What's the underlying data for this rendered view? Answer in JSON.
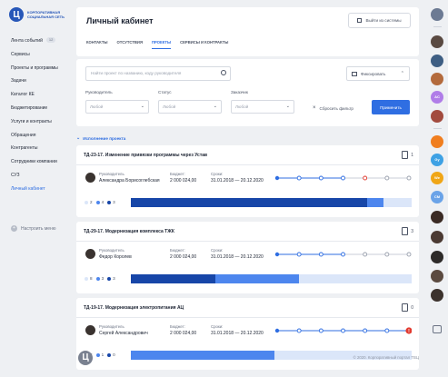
{
  "brand": {
    "name_line1": "Корпоративная",
    "name_line2": "социальная сеть",
    "logo_letter": "Ц"
  },
  "nav": [
    {
      "label": "Лента событий",
      "badge": "12"
    },
    {
      "label": "Сервисы"
    },
    {
      "label": "Проекты и программы"
    },
    {
      "label": "Задачи"
    },
    {
      "label": "Каталог КЕ"
    },
    {
      "label": "Бюджетирование"
    },
    {
      "label": "Услуги и контракты"
    },
    {
      "label": "Обращения"
    },
    {
      "label": "Контрагенты"
    },
    {
      "label": "Сотрудники компании"
    },
    {
      "label": "СУЗ"
    },
    {
      "label": "Личный кабинет",
      "active": true
    }
  ],
  "setup_menu": "Настроить меню",
  "header": {
    "title": "Личный кабинет",
    "logout": "Выйти из системы",
    "tabs": [
      "Контакты",
      "Отсутствия",
      "Проекты",
      "Сервисы и контракты"
    ],
    "active_tab": 2
  },
  "filters": {
    "search_placeholder": "Найти проект по названию, коду руководителя",
    "fix_label": "Фиксировать",
    "manager_label": "Руководитель",
    "status_label": "Статус",
    "customer_label": "Заказчик",
    "any": "Любой",
    "reset": "Сбросить фильтр",
    "apply": "Применить"
  },
  "section": "Исполнение проекта",
  "labels": {
    "manager": "Руководитель",
    "budget": "Бюджет:",
    "dates": "Сроки:"
  },
  "projects": [
    {
      "title": "ТД-23-17. Изменение привязки программы через Устав",
      "docs": "1",
      "manager": "Александра Борисоглебская",
      "budget": "2 000 024,00",
      "dates": "31.01.2018 — 20.12.2020",
      "counts": [
        "2",
        "4",
        "3"
      ],
      "progress": [
        0.84,
        0.06
      ],
      "timeline": [
        "filled",
        "open",
        "open",
        "open",
        "red",
        "grey",
        "grey"
      ]
    },
    {
      "title": "ТД-29-17. Модернизация комплекса ТЖК",
      "docs": "3",
      "manager": "Федор Королев",
      "budget": "2 000 024,00",
      "dates": "31.01.2018 — 20.12.2020",
      "counts": [
        "8",
        "3",
        "3"
      ],
      "progress": [
        0.3,
        0.3
      ],
      "timeline": [
        "filled",
        "open",
        "open",
        "open",
        "grey",
        "grey",
        "grey"
      ]
    },
    {
      "title": "ТД-19-17. Модернизация электропитания АЦ",
      "docs": "0",
      "manager": "Сергей Александрович",
      "budget": "2 000 024,00",
      "dates": "31.01.2018 — 20.12.2020",
      "counts": [
        "2",
        "1",
        "0"
      ],
      "progress": [
        0.0,
        0.51
      ],
      "timeline": [
        "filled",
        "open",
        "open",
        "open",
        "open",
        "open",
        "alert"
      ]
    }
  ],
  "footer": {
    "copyright": "© 2020. Корпоративный портал ТВЦ"
  },
  "rail": [
    {
      "label": "",
      "color": "#6c7a93"
    },
    {
      "label": "",
      "color": "#5a4a42"
    },
    {
      "label": "",
      "color": "#3e5e83"
    },
    {
      "label": "",
      "color": "#b36a3c"
    },
    {
      "label": "AC",
      "color": "#b07de8"
    },
    {
      "label": "",
      "color": "#a24b3e"
    },
    {
      "label": "",
      "color": "#f07e1f"
    },
    {
      "label": "Gy",
      "color": "#3ea1e4"
    },
    {
      "label": "We",
      "color": "#f0a617"
    },
    {
      "label": "CM",
      "color": "#6aa3e8"
    },
    {
      "label": "",
      "color": "#3a2a24"
    },
    {
      "label": "",
      "color": "#4b3a33"
    },
    {
      "label": "",
      "color": "#2d2a29"
    },
    {
      "label": "",
      "color": "#5b4a40"
    },
    {
      "label": "",
      "color": "#3c322d"
    }
  ],
  "colors": {
    "accent": "#2f6ee2",
    "dark_blue": "#1746a8",
    "mid_blue": "#4d86ee",
    "pale_blue": "#dbe6f9",
    "red": "#e23a2f"
  }
}
